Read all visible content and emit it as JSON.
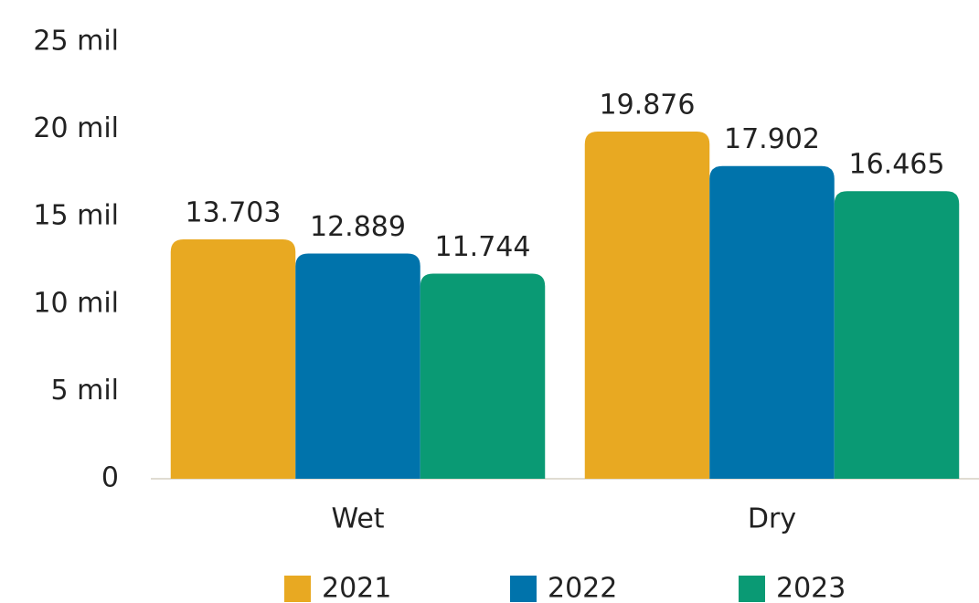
{
  "chart_data": {
    "type": "bar",
    "categories": [
      "Wet",
      "Dry"
    ],
    "series": [
      {
        "name": "2021",
        "color": "#e8a922",
        "values": [
          13703,
          19876
        ],
        "value_labels": [
          "13.703",
          "19.876"
        ]
      },
      {
        "name": "2022",
        "color": "#0073ab",
        "values": [
          12889,
          17902
        ],
        "value_labels": [
          "12.889",
          "17.902"
        ]
      },
      {
        "name": "2023",
        "color": "#0a9a74",
        "values": [
          11744,
          16465
        ],
        "value_labels": [
          "11.744",
          "16.465"
        ]
      }
    ],
    "ylim": [
      0,
      25000
    ],
    "yticks": [
      0,
      {
        "value": 5000,
        "label": "5 mil"
      },
      {
        "value": 10000,
        "label": "10 mil"
      },
      {
        "value": 15000,
        "label": "15 mil"
      },
      {
        "value": 20000,
        "label": "20 mil"
      },
      {
        "value": 25000,
        "label": "25 mil"
      }
    ],
    "grid": false,
    "legend": "bottom"
  }
}
